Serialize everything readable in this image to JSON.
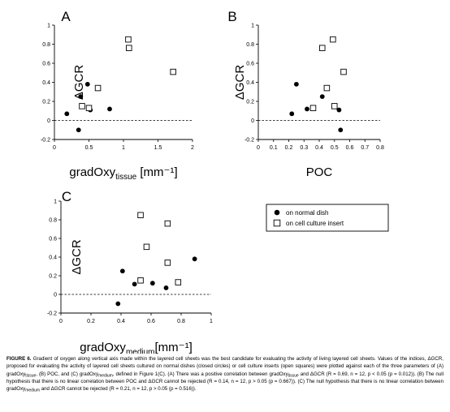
{
  "figure": {
    "caption": {
      "label": "FIGURE 6.",
      "p1": " Gradient of oxygen along vertical axis made within the layered cell sheets was the best candidate for evaluating the activity of living layered cell sheets. Values of the indices, ΔGCR, proposed for evaluating the activity of layered cell sheets cultured on normal dishes (closed circles) or cell culture inserts (open squares) were plotted against each of the three parameters of (A) gradOxy",
      "sub1": "tissue",
      "p2": ", (B) POC, and (C) gradOxy",
      "sub2": "medium",
      "p3": ", defined in Figure 1(C). (A) There was a positive correlation between gradOxy",
      "sub3": "tissue",
      "p4": " and ΔGCR (R = 0.69, n = 12, p < 0.05 (p = 0.012)). (B) The null hypothesis that there is no linear correlation between POC and ΔGCR cannot be rejected (R = 0.14, n = 12, p > 0.05 (p = 0.667)). (C) The null hypothesis that there is no linear correlation between gradOxy",
      "sub4": "medium",
      "p5": " and ΔGCR cannot be rejected (R = 0.21, n = 12, p > 0.05 (p = 0.516))."
    },
    "legend": {
      "items": [
        {
          "label": "on normal dish",
          "marker": "filled-circle"
        },
        {
          "label": "on cell culture insert",
          "marker": "open-square"
        }
      ],
      "placement": "right of panel C"
    }
  },
  "chart_data": [
    {
      "panel": "A",
      "type": "scatter",
      "xlabel": "gradOxy",
      "xlabel_sub": "tissue",
      "xlabel_unit": " [mm⁻¹]",
      "ylabel": "ΔGCR",
      "xlim": [
        0,
        2
      ],
      "ylim": [
        -0.2,
        1
      ],
      "xticks": [
        0,
        0.5,
        1,
        1.5,
        2
      ],
      "xtick_labels": [
        "0",
        "0.5",
        "1",
        "1.5",
        "2"
      ],
      "yticks": [
        -0.2,
        0,
        0.2,
        0.4,
        0.6,
        0.8,
        1
      ],
      "ytick_labels": [
        "-0.2",
        "0",
        "0.2",
        "0.4",
        "0.6",
        "0.8",
        "1"
      ],
      "zero_line": true,
      "series": [
        {
          "name": "on normal dish",
          "marker": "filled-circle",
          "x": [
            0.18,
            0.35,
            0.38,
            0.48,
            0.52,
            0.8
          ],
          "y": [
            0.07,
            -0.1,
            0.25,
            0.38,
            0.11,
            0.12
          ]
        },
        {
          "name": "on cell culture insert",
          "marker": "open-square",
          "x": [
            0.4,
            0.5,
            0.63,
            1.07,
            1.08,
            1.72
          ],
          "y": [
            0.15,
            0.13,
            0.34,
            0.85,
            0.76,
            0.51
          ]
        }
      ]
    },
    {
      "panel": "B",
      "type": "scatter",
      "xlabel": "POC",
      "ylabel": "ΔGCR",
      "xlim": [
        0,
        0.8
      ],
      "ylim": [
        -0.2,
        1
      ],
      "xticks": [
        0,
        0.1,
        0.2,
        0.3,
        0.4,
        0.5,
        0.6,
        0.7,
        0.8
      ],
      "xtick_labels": [
        "0",
        "0.1",
        "0.2",
        "0.3",
        "0.4",
        "0.5",
        "0.6",
        "0.7",
        "0.8"
      ],
      "yticks": [
        -0.2,
        0,
        0.2,
        0.4,
        0.6,
        0.8,
        1
      ],
      "ytick_labels": [
        "-0.2",
        "0",
        "0.2",
        "0.4",
        "0.6",
        "0.8",
        "1"
      ],
      "zero_line": true,
      "series": [
        {
          "name": "on normal dish",
          "marker": "filled-circle",
          "x": [
            0.22,
            0.25,
            0.32,
            0.42,
            0.53,
            0.54
          ],
          "y": [
            0.07,
            0.38,
            0.12,
            0.25,
            0.11,
            -0.1
          ]
        },
        {
          "name": "on cell culture insert",
          "marker": "open-square",
          "x": [
            0.36,
            0.42,
            0.45,
            0.49,
            0.5,
            0.56
          ],
          "y": [
            0.13,
            0.76,
            0.34,
            0.85,
            0.15,
            0.51
          ]
        }
      ]
    },
    {
      "panel": "C",
      "type": "scatter",
      "xlabel": "gradOxy",
      "xlabel_sub": "medium",
      "xlabel_unit": "[mm⁻¹]",
      "ylabel": "ΔGCR",
      "xlim": [
        0,
        1
      ],
      "ylim": [
        -0.2,
        1
      ],
      "xticks": [
        0,
        0.2,
        0.4,
        0.6,
        0.8,
        1
      ],
      "xtick_labels": [
        "0",
        "0.2",
        "0.4",
        "0.6",
        "0.8",
        "1"
      ],
      "yticks": [
        -0.2,
        0,
        0.2,
        0.4,
        0.6,
        0.8,
        1
      ],
      "ytick_labels": [
        "-0.2",
        "0",
        "0.2",
        "0.4",
        "0.6",
        "0.8",
        "1"
      ],
      "zero_line": true,
      "series": [
        {
          "name": "on normal dish",
          "marker": "filled-circle",
          "x": [
            0.38,
            0.41,
            0.49,
            0.61,
            0.7,
            0.89
          ],
          "y": [
            -0.1,
            0.25,
            0.11,
            0.12,
            0.07,
            0.38
          ]
        },
        {
          "name": "on cell culture insert",
          "marker": "open-square",
          "x": [
            0.53,
            0.53,
            0.57,
            0.71,
            0.71,
            0.78
          ],
          "y": [
            0.85,
            0.15,
            0.51,
            0.76,
            0.34,
            0.13
          ]
        }
      ]
    }
  ]
}
